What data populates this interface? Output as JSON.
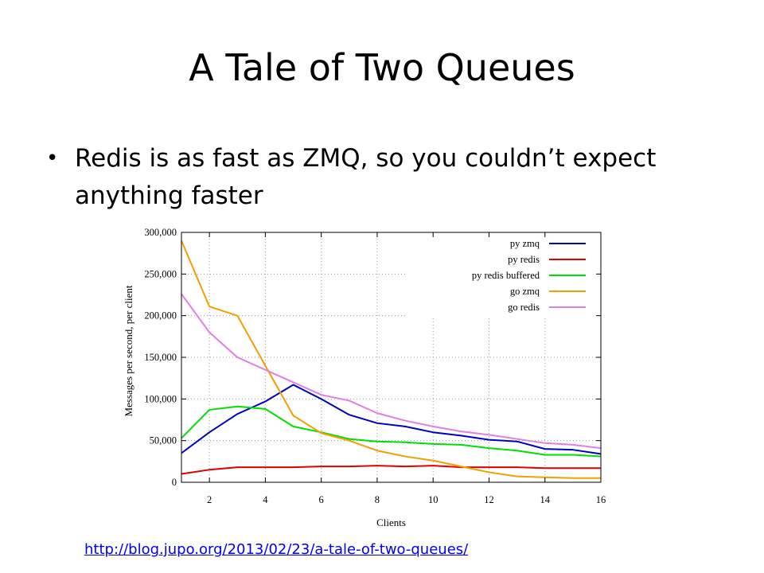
{
  "slide": {
    "title": "A Tale of Two Queues",
    "bullet": "Redis is as fast as ZMQ, so you couldn’t expect anything faster",
    "link": "http://blog.jupo.org/2013/02/23/a-tale-of-two-queues/"
  },
  "chart_data": {
    "type": "line",
    "title": "",
    "xlabel": "Clients",
    "ylabel": "Messages per second, per client",
    "xlim": [
      1,
      16
    ],
    "ylim": [
      0,
      300000
    ],
    "xticks": [
      2,
      4,
      6,
      8,
      10,
      12,
      14,
      16
    ],
    "yticks": [
      0,
      50000,
      100000,
      150000,
      200000,
      250000,
      300000
    ],
    "ytick_labels": [
      "0",
      "50,000",
      "100,000",
      "150,000",
      "200,000",
      "250,000",
      "300,000"
    ],
    "grid": true,
    "legend_position": "top-right",
    "x": [
      1,
      2,
      3,
      4,
      5,
      6,
      7,
      8,
      9,
      10,
      11,
      12,
      13,
      14,
      15,
      16
    ],
    "series": [
      {
        "name": "py zmq",
        "color": "#0000c0",
        "values": [
          35000,
          60000,
          82000,
          97000,
          117000,
          100000,
          81000,
          71000,
          67000,
          60000,
          56000,
          51000,
          49000,
          40000,
          39000,
          34000
        ]
      },
      {
        "name": "py redis",
        "color": "#e00000",
        "values": [
          10000,
          15000,
          18000,
          18000,
          18000,
          19000,
          19000,
          20000,
          19000,
          20000,
          18000,
          18000,
          18000,
          17000,
          17000,
          17000
        ]
      },
      {
        "name": "py redis buffered",
        "color": "#00e000",
        "values": [
          53000,
          87000,
          91000,
          88000,
          67000,
          60000,
          52000,
          49000,
          48000,
          46000,
          45000,
          41000,
          38000,
          33000,
          33000,
          31000
        ]
      },
      {
        "name": "go zmq",
        "color": "#f0a000",
        "values": [
          290000,
          211000,
          200000,
          140000,
          80000,
          59000,
          50000,
          38000,
          31000,
          26000,
          19000,
          12000,
          7000,
          6000,
          5000,
          5000
        ]
      },
      {
        "name": "go redis",
        "color": "#e080e0",
        "values": [
          226000,
          180000,
          150000,
          135000,
          120000,
          105000,
          98000,
          83000,
          74000,
          67000,
          61000,
          57000,
          52000,
          47000,
          45000,
          41000
        ]
      }
    ]
  }
}
